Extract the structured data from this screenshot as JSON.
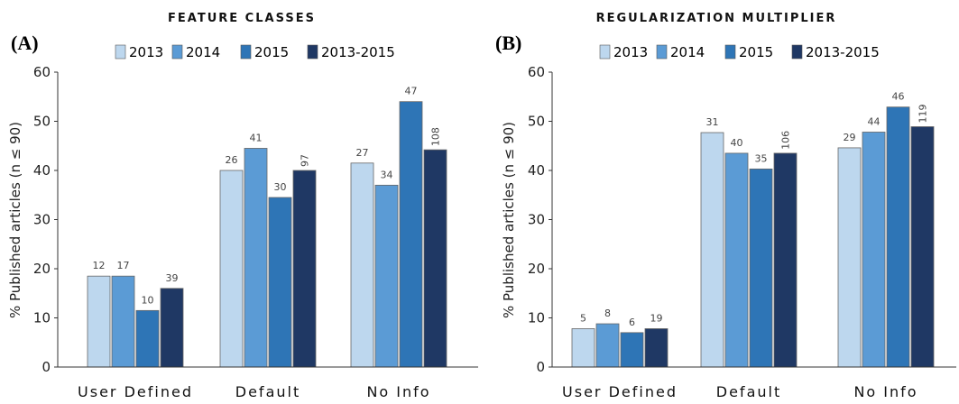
{
  "chart_data": [
    {
      "type": "bar",
      "panel": "(A)",
      "title": "FEATURE CLASSES",
      "ylabel": "% Published articles (n ≤ 90)",
      "xlabel": "",
      "categories": [
        "User Defined",
        "Default",
        "No Info"
      ],
      "yticks": [
        "0",
        "10",
        "20",
        "30",
        "40",
        "50",
        "60"
      ],
      "ylim": [
        0,
        60
      ],
      "grid": false,
      "legend_position": "top",
      "series": [
        {
          "name": "2013",
          "color": "#bdd7ee",
          "values": [
            18.5,
            40,
            41.5
          ],
          "labels": [
            "12",
            "26",
            "27"
          ]
        },
        {
          "name": "2014",
          "color": "#5b9bd5",
          "values": [
            18.5,
            44.5,
            37
          ],
          "labels": [
            "17",
            "41",
            "34"
          ]
        },
        {
          "name": "2015",
          "color": "#2e75b6",
          "values": [
            11.5,
            34.5,
            54
          ],
          "labels": [
            "10",
            "30",
            "47"
          ]
        },
        {
          "name": "2013-2015",
          "color": "#1f3864",
          "values": [
            16,
            40,
            44.2
          ],
          "labels": [
            "39",
            "97",
            "108"
          ]
        }
      ]
    },
    {
      "type": "bar",
      "panel": "(B)",
      "title": "REGULARIZATION MULTIPLIER",
      "ylabel": "% Published articles (n ≤ 90)",
      "xlabel": "",
      "categories": [
        "User Defined",
        "Default",
        "No Info"
      ],
      "yticks": [
        "0",
        "10",
        "20",
        "30",
        "40",
        "50",
        "60"
      ],
      "ylim": [
        0,
        60
      ],
      "grid": false,
      "legend_position": "top",
      "series": [
        {
          "name": "2013",
          "color": "#bdd7ee",
          "values": [
            7.8,
            47.7,
            44.6
          ],
          "labels": [
            "5",
            "31",
            "29"
          ]
        },
        {
          "name": "2014",
          "color": "#5b9bd5",
          "values": [
            8.8,
            43.5,
            47.8
          ],
          "labels": [
            "8",
            "40",
            "44"
          ]
        },
        {
          "name": "2015",
          "color": "#2e75b6",
          "values": [
            7,
            40.3,
            52.9
          ],
          "labels": [
            "6",
            "35",
            "46"
          ]
        },
        {
          "name": "2013-2015",
          "color": "#1f3864",
          "values": [
            7.8,
            43.5,
            48.9
          ],
          "labels": [
            "19",
            "106",
            "119"
          ]
        }
      ]
    }
  ]
}
